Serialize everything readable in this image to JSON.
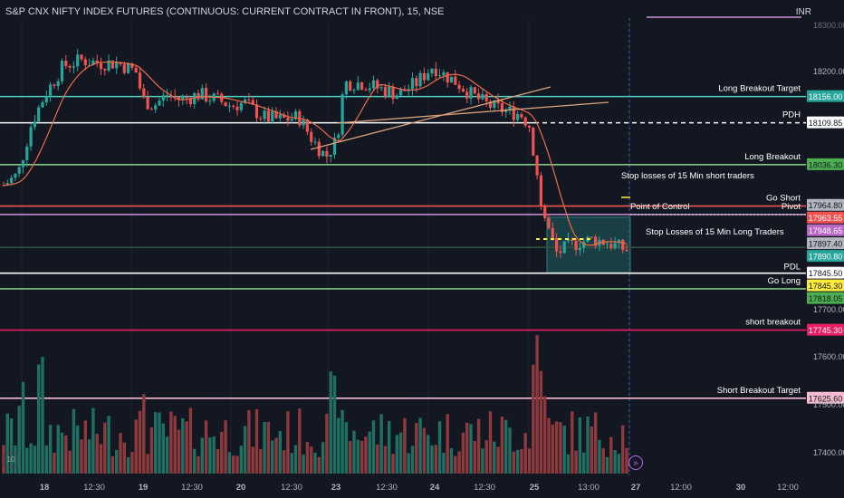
{
  "header": {
    "title": "S&P CNX NIFTY INDEX FUTURES (CONTINUOUS: CURRENT CONTRACT IN FRONT), 15, NSE",
    "currency": "INR"
  },
  "chart_data": {
    "type": "candlestick",
    "price_axis": {
      "ticks": [
        "18200.00",
        "17700.00",
        "17600.00",
        "17500.00",
        "17400.00"
      ],
      "top_clipped_label": "18300.00"
    },
    "time_axis": {
      "ticks": [
        "18",
        "12:30",
        "19",
        "12:30",
        "20",
        "12:30",
        "23",
        "12:30",
        "24",
        "12:30",
        "25",
        "13:00",
        "27",
        "12:00",
        "30",
        "12:00"
      ]
    },
    "levels": [
      {
        "price": 18156.0,
        "price_label": "18156.00",
        "name": "Long Breakout Target",
        "color": "#4dd0c4",
        "label_color": "#26a69a",
        "style": "solid"
      },
      {
        "price": 18109.85,
        "price_label": "18109.85",
        "name": "PDH",
        "color": "#ffffff",
        "label_color": "#ffffff",
        "style": "dashed"
      },
      {
        "price": 18036.3,
        "price_label": "18036.30",
        "name": "Long Breakout",
        "color": "#81c784",
        "label_color": "#4caf50",
        "style": "solid"
      },
      {
        "price": 17964.8,
        "price_label": "17964.80",
        "name": "",
        "color": "",
        "label_color": "#b2b5be",
        "style": "none"
      },
      {
        "price": 17963.55,
        "price_label": "17963.55",
        "name": "Go Short",
        "color": "#ef5350",
        "label_color": "#ef5350",
        "style": "solid"
      },
      {
        "price": 17948.65,
        "price_label": "17948.65",
        "name": "Pivot",
        "color": "#ce93d8",
        "label_color": "#ba68c8",
        "style": "solid"
      },
      {
        "price": 17897.4,
        "price_label": "17897.40",
        "name": "",
        "color": "",
        "label_color": "#b2b5be",
        "style": "none"
      },
      {
        "price": 17890.8,
        "price_label": "17890.80",
        "name": "",
        "color": "#2f4f3f",
        "label_color": "#26a69a",
        "style": "solid"
      },
      {
        "price": 17845.5,
        "price_label": "17845.50",
        "name": "PDL",
        "color": "#ffffff",
        "label_color": "#ffffff",
        "style": "solid"
      },
      {
        "price": 17845.3,
        "price_label": "17845.30",
        "name": "",
        "color": "",
        "label_color": "#ffeb3b",
        "style": "none"
      },
      {
        "price": 17818.05,
        "price_label": "17818.05",
        "name": "Go Long",
        "color": "#81c784",
        "label_color": "#4caf50",
        "style": "solid"
      },
      {
        "price": 17745.3,
        "price_label": "17745.30",
        "name": "short breakout",
        "color": "#e91e63",
        "label_color": "#e91e63",
        "style": "solid"
      },
      {
        "price": 17625.6,
        "price_label": "17625.60",
        "name": "Short  Breakout Target",
        "color": "#f8bbd0",
        "label_color": "#f8bbd0",
        "style": "solid"
      }
    ],
    "annotations": [
      {
        "text": "Stop losses of 15 Min short traders",
        "price": 17963.55
      },
      {
        "text": "Point of Control",
        "price": 17897.4
      },
      {
        "text": "Stop Losses of 15 Min Long Traders",
        "price": 17845.5
      }
    ],
    "colors": {
      "up": "#26a69a",
      "down": "#ef5350",
      "ma": "#f06a4a",
      "trendline": "#d9a07a",
      "box": "#1f5f5f"
    }
  }
}
